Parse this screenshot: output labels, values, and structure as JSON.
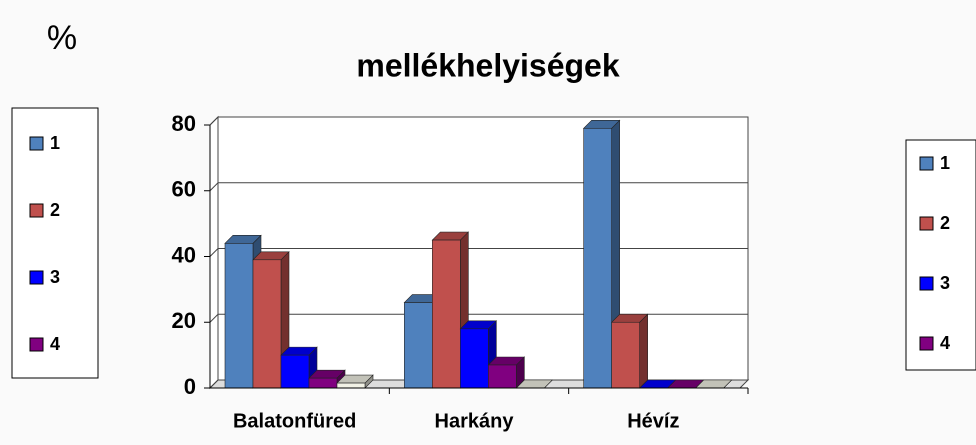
{
  "chart_data": {
    "type": "bar3d",
    "title": "mellékhelyiségek",
    "unit_label": "%",
    "categories": [
      "Balatonfüred",
      "Harkány",
      "Hévíz"
    ],
    "series": [
      {
        "name": "1",
        "color": "#4f81bd",
        "values": [
          44,
          26,
          79
        ]
      },
      {
        "name": "2",
        "color": "#c0504d",
        "values": [
          39,
          45,
          20
        ]
      },
      {
        "name": "3",
        "color": "#0000ff",
        "values": [
          10,
          18,
          0
        ]
      },
      {
        "name": "4",
        "color": "#800080",
        "values": [
          3,
          7,
          0
        ]
      },
      {
        "color": "#f2f2e6",
        "values": [
          1.5,
          0,
          0
        ]
      }
    ],
    "ylim": [
      0,
      80
    ],
    "yticks": [
      0,
      20,
      40,
      60,
      80
    ],
    "grid": true
  }
}
